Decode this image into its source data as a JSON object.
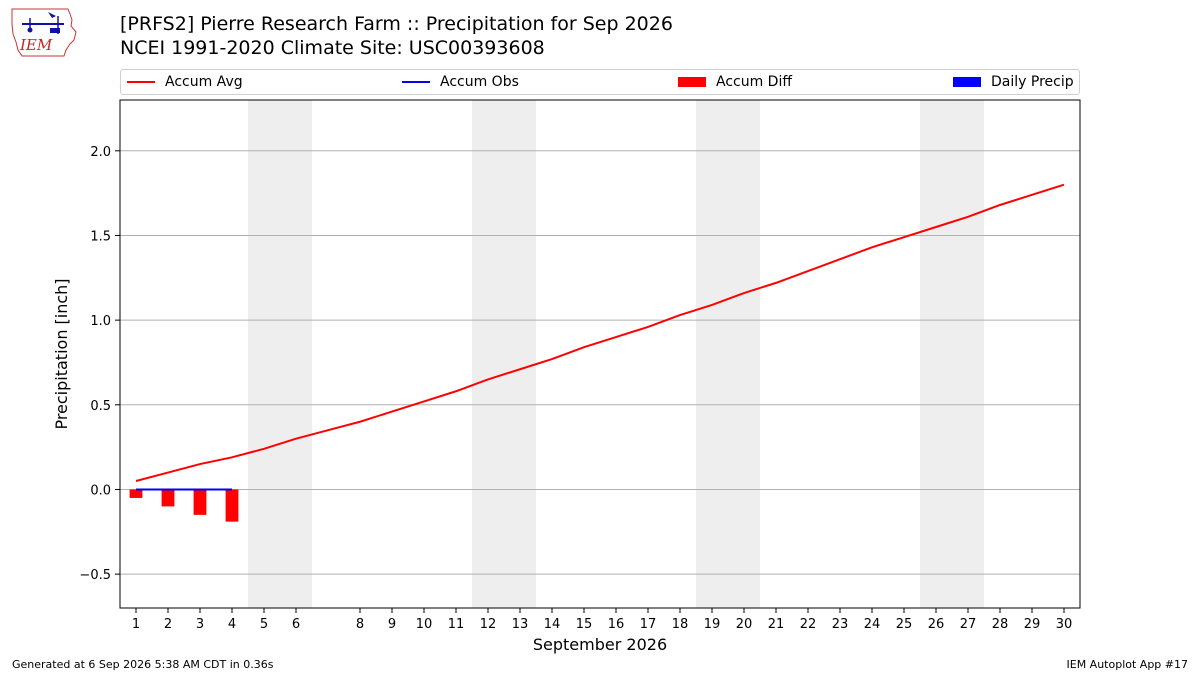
{
  "logo": {
    "text": "IEM"
  },
  "header": {
    "title_line1": "[PRFS2] Pierre Research Farm :: Precipitation for Sep 2026",
    "title_line2": "NCEI 1991-2020 Climate Site: USC00393608"
  },
  "colors": {
    "accum_avg": "#ff0000",
    "accum_obs": "#0000ff",
    "accum_diff": "#ff0000",
    "daily_precip": "#0000ff",
    "weekend_band": "#eeeeee",
    "grid": "#b0b0b0"
  },
  "chart_data": {
    "type": "line",
    "xlabel": "September 2026",
    "ylabel": "Precipitation [inch]",
    "xlim": [
      0.5,
      30.5
    ],
    "ylim": [
      -0.7,
      2.3
    ],
    "yticks": [
      -0.5,
      0.0,
      0.5,
      1.0,
      1.5,
      2.0
    ],
    "ytick_labels": [
      "−0.5",
      "0.0",
      "0.5",
      "1.0",
      "1.5",
      "2.0"
    ],
    "xticks": [
      1,
      2,
      3,
      4,
      5,
      6,
      8,
      9,
      10,
      11,
      12,
      13,
      14,
      15,
      16,
      17,
      18,
      19,
      20,
      21,
      22,
      23,
      24,
      25,
      26,
      27,
      28,
      29,
      30
    ],
    "grid": "horizontal",
    "legend_position": "top",
    "legend": [
      "Accum Avg",
      "Accum Obs",
      "Accum Diff",
      "Daily Precip"
    ],
    "weekend_bands": [
      [
        5,
        6
      ],
      [
        12,
        13
      ],
      [
        19,
        20
      ],
      [
        26,
        27
      ]
    ],
    "series": [
      {
        "name": "Accum Avg",
        "type": "line",
        "x": [
          1,
          2,
          3,
          4,
          5,
          6,
          7,
          8,
          9,
          10,
          11,
          12,
          13,
          14,
          15,
          16,
          17,
          18,
          19,
          20,
          21,
          22,
          23,
          24,
          25,
          26,
          27,
          28,
          29,
          30
        ],
        "values": [
          0.05,
          0.1,
          0.15,
          0.19,
          0.24,
          0.3,
          0.35,
          0.4,
          0.46,
          0.52,
          0.58,
          0.65,
          0.71,
          0.77,
          0.84,
          0.9,
          0.96,
          1.03,
          1.09,
          1.16,
          1.22,
          1.29,
          1.36,
          1.43,
          1.49,
          1.55,
          1.61,
          1.68,
          1.74,
          1.8
        ]
      },
      {
        "name": "Accum Obs",
        "type": "line",
        "x": [
          1,
          2,
          3,
          4
        ],
        "values": [
          0.0,
          0.0,
          0.0,
          0.0
        ]
      },
      {
        "name": "Accum Diff",
        "type": "bar",
        "x": [
          1,
          2,
          3,
          4
        ],
        "values": [
          -0.05,
          -0.1,
          -0.15,
          -0.19
        ]
      },
      {
        "name": "Daily Precip",
        "type": "bar",
        "x": [
          1,
          2,
          3,
          4
        ],
        "values": [
          0.0,
          0.0,
          0.0,
          0.0
        ]
      }
    ]
  },
  "footer": {
    "left": "Generated at 6 Sep 2026 5:38 AM CDT in 0.36s",
    "right": "IEM Autoplot App #17"
  }
}
